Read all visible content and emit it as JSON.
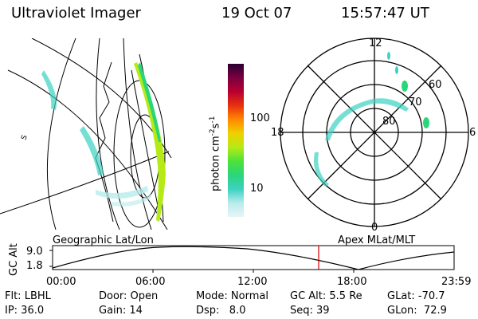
{
  "header": {
    "title": "Ultraviolet Imager",
    "date": "19 Oct 07",
    "time": "15:57:47 UT"
  },
  "colorbar": {
    "unit": "photon cm",
    "unit_sup1": "-2",
    "unit_s": "s",
    "unit_sup2": "-1",
    "tick_100": "100",
    "tick_10": "10",
    "colors": [
      "#e8f4f6",
      "#b8ecec",
      "#3cd2c2",
      "#2ad67a",
      "#4ce23a",
      "#b6ea16",
      "#f0d000",
      "#ff8800",
      "#e83010",
      "#b80030",
      "#7a0040",
      "#2a0030"
    ]
  },
  "polar": {
    "top": "12",
    "left": "18",
    "right": "6",
    "bottom": "0",
    "lat_60": "60",
    "lat_70": "70",
    "lat_80": "80"
  },
  "geo_label": "Geographic Lat/Lon",
  "apex_label": "Apex MLat/MLT",
  "alt_axis": {
    "label": "GC Alt",
    "top": "9.0",
    "bottom": "1.8"
  },
  "time_ticks": [
    "00:00",
    "06:00",
    "12:00",
    "18:00",
    "23:59"
  ],
  "info": {
    "flt": "Flt: LBHL",
    "ip": "IP: 36.0",
    "door": "Door: Open",
    "gain": "Gain: 14",
    "mode": "Mode: Normal",
    "dsp": "Dsp:   8.0",
    "gcalt": "GC Alt: 5.5 Re",
    "seq": "Seq: 39",
    "glat": "GLat: -70.7",
    "glon": "GLon:  72.9"
  }
}
